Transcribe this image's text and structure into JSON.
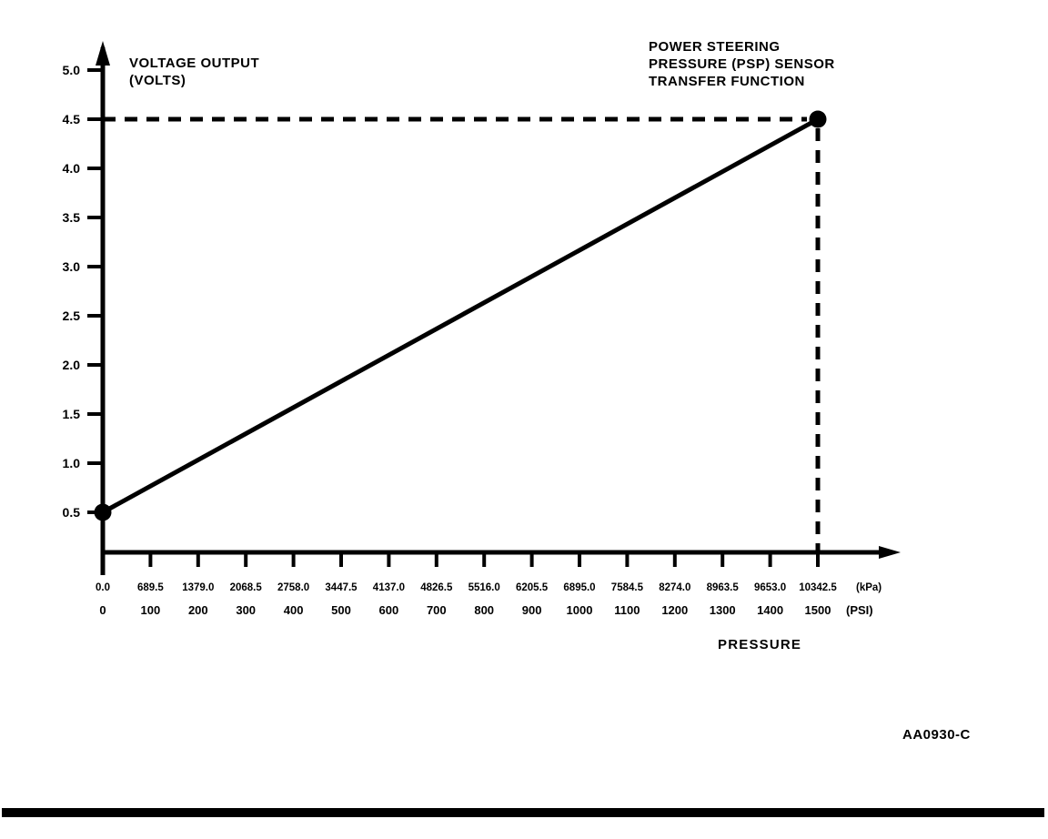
{
  "figure_code": "AA0930-C",
  "chart_data": {
    "type": "line",
    "title": "POWER STEERING PRESSURE (PSP) SENSOR TRANSFER FUNCTION",
    "title_lines": [
      "POWER STEERING",
      "PRESSURE (PSP) SENSOR",
      "TRANSFER FUNCTION"
    ],
    "ylabel": "VOLTAGE OUTPUT (VOLTS)",
    "ylabel_lines": [
      "VOLTAGE OUTPUT",
      "(VOLTS)"
    ],
    "xlabel": "PRESSURE",
    "y_ticks": [
      "5.0",
      "4.5",
      "4.0",
      "3.5",
      "3.0",
      "2.5",
      "2.0",
      "1.5",
      "1.0",
      "0.5"
    ],
    "ylim": [
      0,
      5.0
    ],
    "x_ticks_kpa": [
      "0.0",
      "689.5",
      "1379.0",
      "2068.5",
      "2758.0",
      "3447.5",
      "4137.0",
      "4826.5",
      "5516.0",
      "6205.5",
      "6895.0",
      "7584.5",
      "8274.0",
      "8963.5",
      "9653.0",
      "10342.5"
    ],
    "x_unit_kpa": "(kPa)",
    "x_ticks_psi": [
      "0",
      "100",
      "200",
      "300",
      "400",
      "500",
      "600",
      "700",
      "800",
      "900",
      "1000",
      "1100",
      "1200",
      "1300",
      "1400",
      "1500"
    ],
    "x_unit_psi": "(PSI)",
    "xlim_psi": [
      0,
      1500
    ],
    "series": [
      {
        "name": "PSP sensor transfer function",
        "points_psi_volts": [
          [
            0,
            0.5
          ],
          [
            1500,
            4.5
          ]
        ]
      }
    ],
    "dashed_reference": {
      "volts": 4.5,
      "psi": 1500
    },
    "line_color": "#000000",
    "background_color": "#ffffff",
    "grid": false,
    "legend": false
  }
}
